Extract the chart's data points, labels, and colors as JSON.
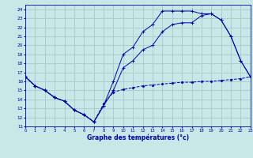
{
  "xlabel": "Graphe des températures (°c)",
  "bg_color": "#c8e8e8",
  "grid_color": "#a8c8cc",
  "line_color": "#0000aa",
  "xlim": [
    0,
    23
  ],
  "ylim": [
    11,
    24.5
  ],
  "xticks": [
    0,
    1,
    2,
    3,
    4,
    5,
    6,
    7,
    8,
    9,
    10,
    11,
    12,
    13,
    14,
    15,
    16,
    17,
    18,
    19,
    20,
    21,
    22,
    23
  ],
  "yticks": [
    11,
    12,
    13,
    14,
    15,
    16,
    17,
    18,
    19,
    20,
    21,
    22,
    23,
    24
  ],
  "s1_x": [
    0,
    1,
    2,
    3,
    4,
    5,
    6,
    7,
    8,
    9,
    10,
    11,
    12,
    13,
    14,
    15,
    16,
    17,
    18,
    19,
    20,
    21,
    22,
    23
  ],
  "s1_y": [
    16.5,
    15.5,
    15.0,
    14.2,
    13.8,
    12.8,
    12.3,
    11.5,
    13.5,
    14.8,
    15.1,
    15.3,
    15.5,
    15.6,
    15.7,
    15.8,
    15.9,
    15.9,
    16.0,
    16.0,
    16.1,
    16.2,
    16.3,
    16.5
  ],
  "s2_x": [
    0,
    1,
    2,
    3,
    4,
    5,
    6,
    7,
    8,
    9,
    10,
    11,
    12,
    13,
    14,
    15,
    16,
    17,
    18,
    19,
    20,
    21,
    22,
    23
  ],
  "s2_y": [
    16.5,
    15.5,
    15.0,
    14.2,
    13.8,
    12.8,
    12.3,
    11.5,
    13.3,
    15.0,
    17.5,
    18.3,
    19.5,
    20.0,
    21.5,
    22.3,
    22.5,
    22.5,
    23.3,
    23.5,
    22.8,
    21.0,
    18.3,
    16.5
  ],
  "s3_x": [
    0,
    1,
    2,
    3,
    4,
    5,
    6,
    7,
    8,
    9,
    10,
    11,
    12,
    13,
    14,
    15,
    16,
    17,
    18,
    19,
    20,
    21,
    22,
    23
  ],
  "s3_y": [
    16.5,
    15.5,
    15.0,
    14.2,
    13.8,
    12.8,
    12.3,
    11.5,
    13.3,
    16.0,
    19.0,
    19.8,
    21.5,
    22.3,
    23.8,
    23.8,
    23.8,
    23.8,
    23.5,
    23.5,
    22.8,
    21.0,
    18.3,
    16.5
  ]
}
